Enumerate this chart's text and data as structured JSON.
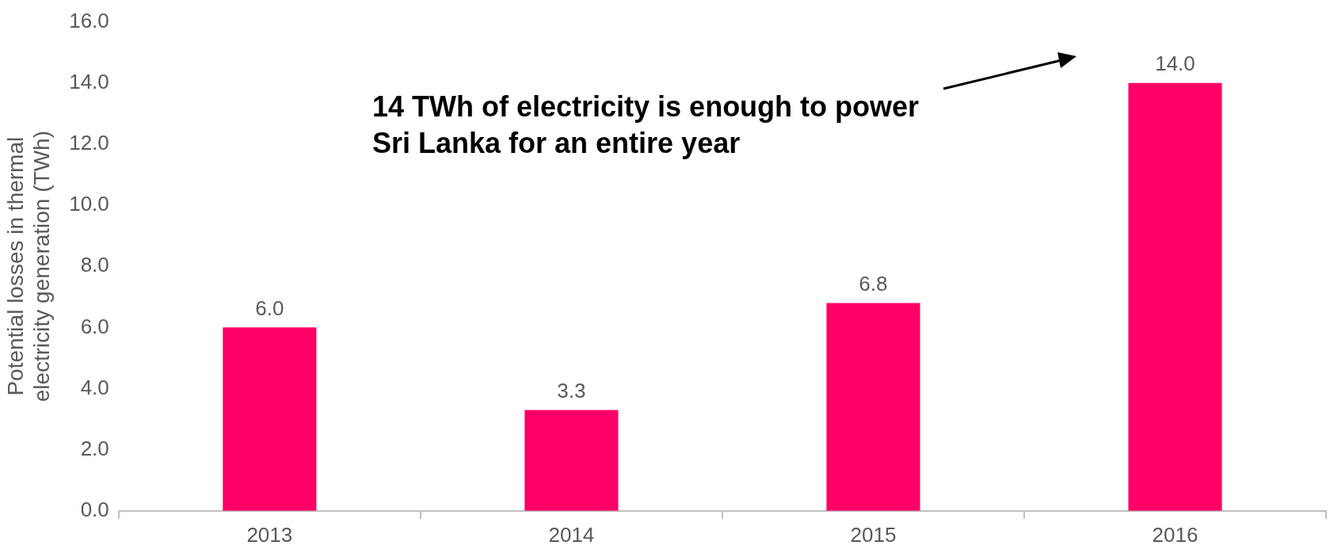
{
  "chart_data": {
    "type": "bar",
    "ylabel": "Potential losses in thermal electricity generation (TWh)",
    "categories": [
      "2013",
      "2014",
      "2015",
      "2016"
    ],
    "values": [
      6.0,
      3.3,
      6.8,
      14.0
    ],
    "color": "#ff0066",
    "value_labels": [
      "6.0",
      "3.3",
      "6.8",
      "14.0"
    ],
    "ylim": [
      0,
      16
    ],
    "yticks": [
      {
        "value": 0,
        "label": "0.0"
      },
      {
        "value": 2,
        "label": "2.0"
      },
      {
        "value": 4,
        "label": "4.0"
      },
      {
        "value": 6,
        "label": "6.0"
      },
      {
        "value": 8,
        "label": "8.0"
      },
      {
        "value": 10,
        "label": "10.0"
      },
      {
        "value": 12,
        "label": "12.0"
      },
      {
        "value": 14,
        "label": "14.0"
      },
      {
        "value": 16,
        "label": "16.0"
      }
    ],
    "grid": false,
    "legend": false,
    "annotations": [
      "14 TWh of electricity is enough to power Sri Lanka for an entire year"
    ]
  }
}
